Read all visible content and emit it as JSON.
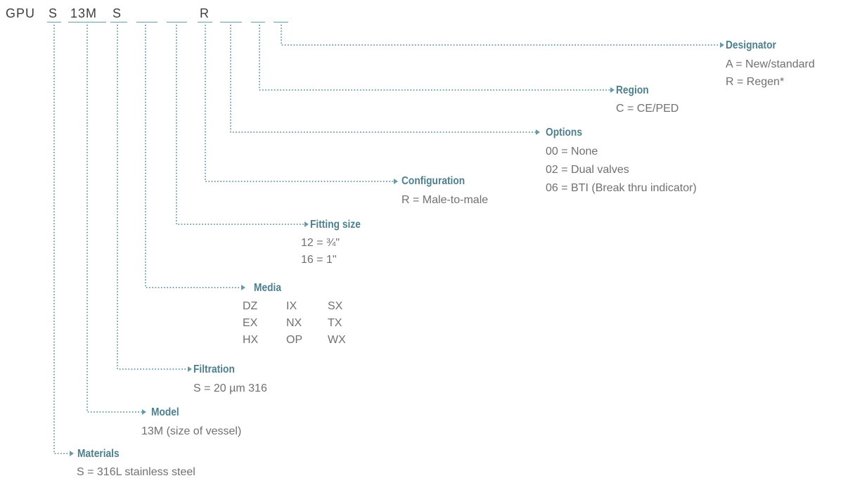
{
  "code": {
    "prefix": "GPU",
    "materials": "S",
    "model": "13M",
    "filtration": "S",
    "media": "",
    "fitting_size": "",
    "configuration": "R",
    "options": "",
    "region": "",
    "designator": ""
  },
  "fields": {
    "designator": {
      "heading": "Designator",
      "lines": [
        "A = New/standard",
        "R = Regen*"
      ]
    },
    "region": {
      "heading": "Region",
      "lines": [
        "C = CE/PED"
      ]
    },
    "options": {
      "heading": "Options",
      "lines": [
        "00 = None",
        "02 = Dual valves",
        "06 = BTI (Break thru indicator)"
      ]
    },
    "configuration": {
      "heading": "Configuration",
      "lines": [
        "R = Male-to-male"
      ]
    },
    "fitting_size": {
      "heading": "Fitting size",
      "lines": [
        "12 = ¾\"",
        "16 = 1\""
      ]
    },
    "media": {
      "heading": "Media",
      "grid": [
        [
          "DZ",
          "IX",
          "SX"
        ],
        [
          "EX",
          "NX",
          "TX"
        ],
        [
          "HX",
          "OP",
          "WX"
        ]
      ]
    },
    "filtration": {
      "heading": "Filtration",
      "lines": [
        "S = 20 µm 316"
      ]
    },
    "model": {
      "heading": "Model",
      "lines": [
        "13M (size of vessel)"
      ]
    },
    "materials": {
      "heading": "Materials",
      "lines": [
        "S = 316L stainless steel"
      ]
    }
  },
  "colors": {
    "accent": "#4d7f8c",
    "connector": "#6b9aa7",
    "text": "#707070",
    "code_text": "#3f3f3f"
  }
}
